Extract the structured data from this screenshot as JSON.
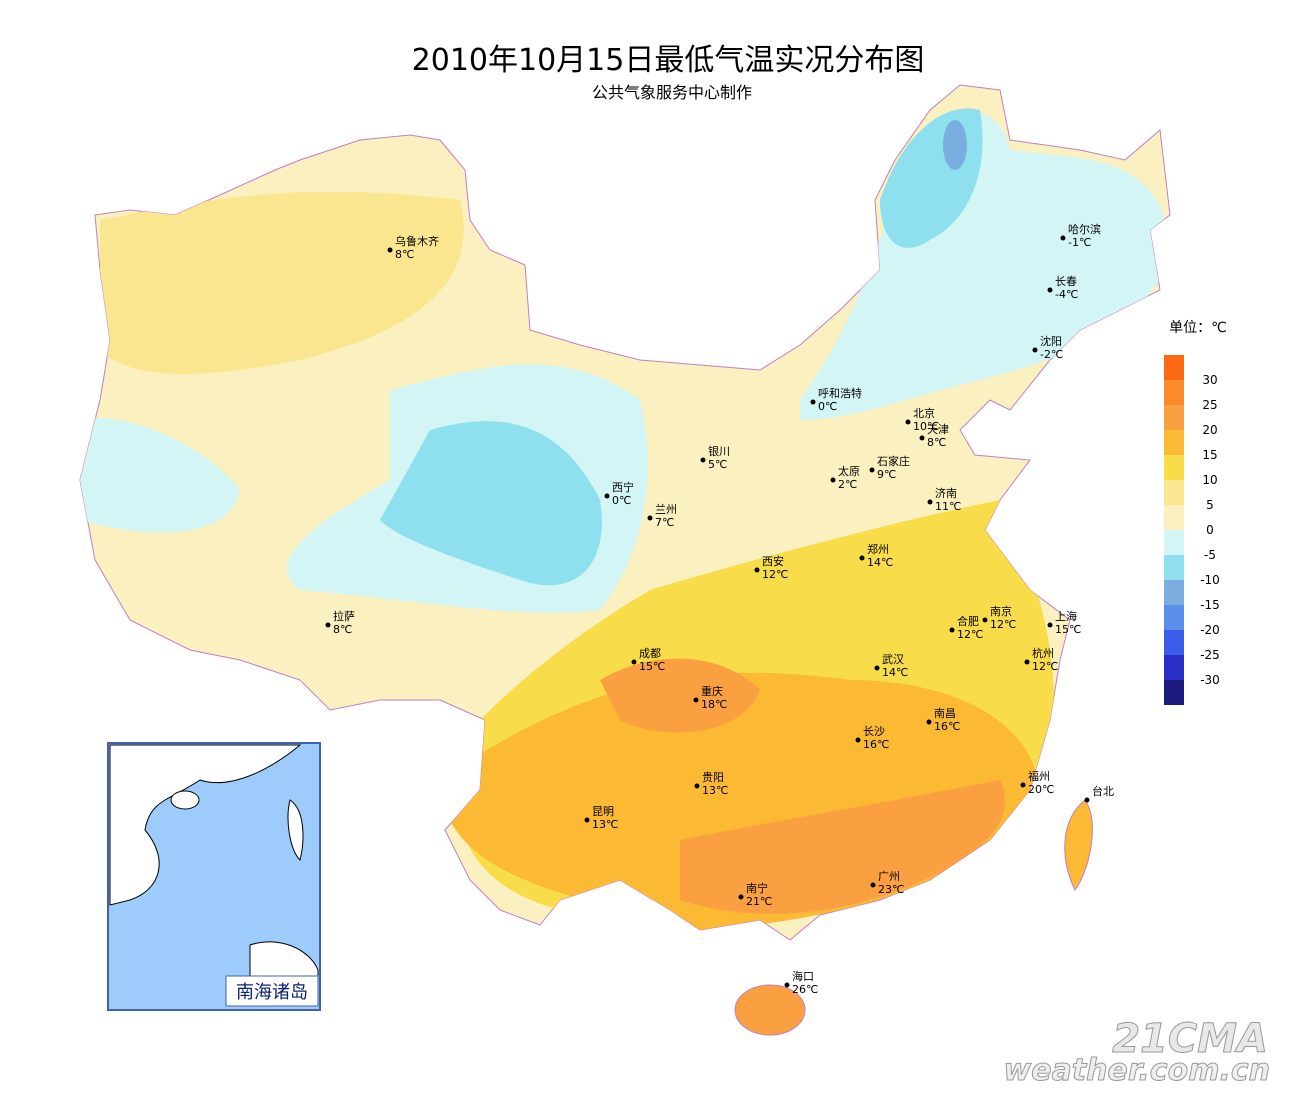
{
  "header": {
    "title": "2010年10月15日最低气温实况分布图",
    "subtitle": "公共气象服务中心制作"
  },
  "cities": [
    {
      "name": "乌鲁木齐",
      "temp": "8℃"
    },
    {
      "name": "哈尔滨",
      "temp": "-1℃"
    },
    {
      "name": "长春",
      "temp": "-4℃"
    },
    {
      "name": "沈阳",
      "temp": "-2℃"
    },
    {
      "name": "呼和浩特",
      "temp": "0℃"
    },
    {
      "name": "北京",
      "temp": "10℃"
    },
    {
      "name": "天津",
      "temp": "8℃"
    },
    {
      "name": "银川",
      "temp": "5℃"
    },
    {
      "name": "石家庄",
      "temp": "9℃"
    },
    {
      "name": "太原",
      "temp": "2℃"
    },
    {
      "name": "西宁",
      "temp": "0℃"
    },
    {
      "name": "兰州",
      "temp": "7℃"
    },
    {
      "name": "济南",
      "temp": "11℃"
    },
    {
      "name": "郑州",
      "temp": "14℃"
    },
    {
      "name": "西安",
      "temp": "12℃"
    },
    {
      "name": "拉萨",
      "temp": "8℃"
    },
    {
      "name": "南京",
      "temp": "12℃"
    },
    {
      "name": "合肥",
      "temp": "12℃"
    },
    {
      "name": "上海",
      "temp": "15℃"
    },
    {
      "name": "成都",
      "temp": "15℃"
    },
    {
      "name": "武汉",
      "temp": "14℃"
    },
    {
      "name": "杭州",
      "temp": "12℃"
    },
    {
      "name": "重庆",
      "temp": "18℃"
    },
    {
      "name": "南昌",
      "temp": "16℃"
    },
    {
      "name": "长沙",
      "temp": "16℃"
    },
    {
      "name": "贵阳",
      "temp": "13℃"
    },
    {
      "name": "福州",
      "temp": "20℃"
    },
    {
      "name": "台北"
    },
    {
      "name": "昆明",
      "temp": "13℃"
    },
    {
      "name": "南宁",
      "temp": "21℃"
    },
    {
      "name": "广州",
      "temp": "23℃"
    },
    {
      "name": "海口",
      "temp": "26℃"
    }
  ],
  "legend": {
    "unit": "单位：℃",
    "ticks": [
      30,
      25,
      20,
      15,
      10,
      5,
      0,
      -5,
      -10,
      -15,
      -20,
      -25,
      -30
    ],
    "colors": [
      "#fb6a12",
      "#fb8a2a",
      "#fba040",
      "#fbb934",
      "#f8dc4a",
      "#fbe690",
      "#fbf0c0",
      "#d4f5f5",
      "#8ee0ee",
      "#7aaee0",
      "#5a8ee8",
      "#3a5ee8",
      "#2a2ec8",
      "#1c1c80"
    ]
  },
  "inset": {
    "label": "南海诸岛"
  },
  "watermark": {
    "logo": "21CMA",
    "site": "weather.com.cn"
  }
}
